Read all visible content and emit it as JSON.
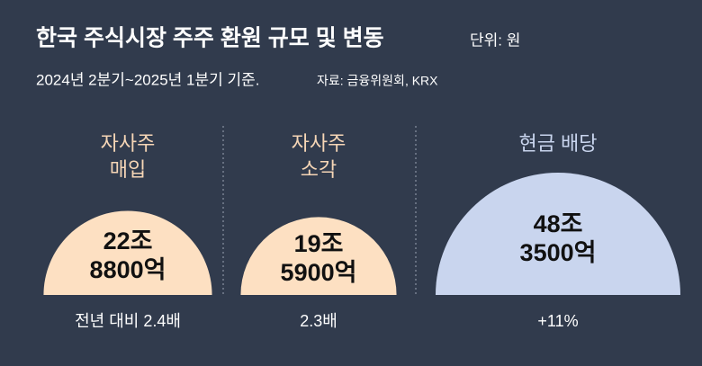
{
  "chart_data": {
    "type": "semicircle",
    "title": "한국 주식시장 주주 환원 규모 및 변동",
    "unit": "단위: 원",
    "subtitle": "2024년 2분기~2025년 1분기 기준.",
    "source": "자료: 금융위원회, KRX",
    "categories": [
      [
        "자사주",
        "매입"
      ],
      [
        "자사주",
        "소각"
      ],
      [
        "현금 배당"
      ]
    ],
    "values": [
      228800,
      195900,
      483500
    ],
    "value_labels": [
      [
        "22조",
        "8800억"
      ],
      [
        "19조",
        "5900억"
      ],
      [
        "48조",
        "3500억"
      ]
    ],
    "changes": [
      "전년 대비 2.4배",
      "2.3배",
      "+11%"
    ],
    "colors": [
      "#fde0c2",
      "#fde0c2",
      "#c9d5ee"
    ],
    "label_colors": [
      "#f6d6b6",
      "#f6d6b6",
      "#c9d5ee"
    ]
  }
}
